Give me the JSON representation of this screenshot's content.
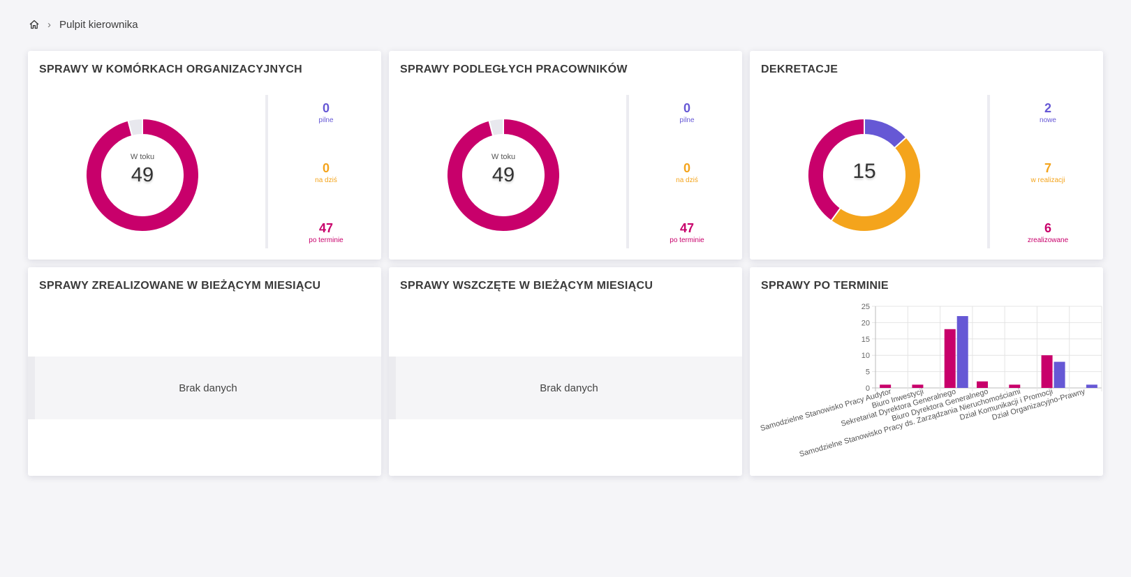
{
  "breadcrumb": {
    "home_icon": "home-icon",
    "current": "Pulpit kierownika"
  },
  "colors": {
    "pink": "#c8006b",
    "purple": "#6658d5",
    "orange": "#f4a41c",
    "gray": "#e8e8ee"
  },
  "cards": {
    "komorki": {
      "title": "SPRAWY W KOMÓRKACH ORGANIZACYJNYCH",
      "donut_label": "W toku",
      "donut_value": "49",
      "stats": [
        {
          "value": "0",
          "label": "pilne"
        },
        {
          "value": "0",
          "label": "na dziś"
        },
        {
          "value": "47",
          "label": "po terminie"
        }
      ]
    },
    "pracownicy": {
      "title": "SPRAWY PODLEGŁYCH PRACOWNIKÓW",
      "donut_label": "W toku",
      "donut_value": "49",
      "stats": [
        {
          "value": "0",
          "label": "pilne"
        },
        {
          "value": "0",
          "label": "na dziś"
        },
        {
          "value": "47",
          "label": "po terminie"
        }
      ]
    },
    "dekretacje": {
      "title": "DEKRETACJE",
      "donut_value": "15",
      "stats": [
        {
          "value": "2",
          "label": "nowe"
        },
        {
          "value": "7",
          "label": "w realizacji"
        },
        {
          "value": "6",
          "label": "zrealizowane"
        }
      ]
    },
    "zrealizowane": {
      "title": "SPRAWY ZREALIZOWANE W BIEŻĄCYM MIESIĄCU",
      "empty_text": "Brak danych"
    },
    "wszczete": {
      "title": "SPRAWY WSZCZĘTE W BIEŻĄCYM MIESIĄCU",
      "empty_text": "Brak danych"
    },
    "po_terminie": {
      "title": "SPRAWY PO TERMINIE"
    }
  },
  "donut_data": {
    "komorki": [
      {
        "value": 47,
        "color": "#c8006b"
      },
      {
        "value": 2,
        "color": "#e8e8ee"
      }
    ],
    "pracownicy": [
      {
        "value": 47,
        "color": "#c8006b"
      },
      {
        "value": 2,
        "color": "#e8e8ee"
      }
    ],
    "dekretacje": [
      {
        "value": 2,
        "color": "#6658d5"
      },
      {
        "value": 7,
        "color": "#f4a41c"
      },
      {
        "value": 6,
        "color": "#c8006b"
      }
    ]
  },
  "chart_data": {
    "type": "bar",
    "categories": [
      "Samodzielne Stanowisko Pracy Audytor",
      "Biuro Inwestycji",
      "Sekretariat Dyrektora Generalnego",
      "Biuro Dyrektora Generalnego",
      "Samodzielne Stanowisko Pracy ds. Zarządzania Nieruchomościami",
      "Dział Komunikacji i Promocji",
      "Dział Organizacyjno-Prawny"
    ],
    "series": [
      {
        "values": [
          1,
          1,
          18,
          2,
          1,
          10,
          0
        ],
        "color": "#c8006b"
      },
      {
        "values": [
          0,
          0,
          22,
          0,
          0,
          8,
          1
        ],
        "color": "#6658d5"
      }
    ],
    "ylim": [
      0,
      25
    ],
    "yticks": [
      "0",
      "5",
      "10",
      "15",
      "20",
      "25"
    ],
    "grid": true,
    "legend": "none"
  }
}
